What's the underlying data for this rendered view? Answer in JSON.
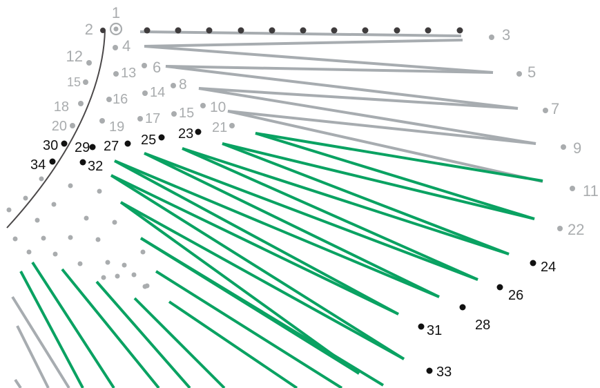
{
  "colors": {
    "background": "#ffffff",
    "gray_line": "#a7acb0",
    "green_line": "#0aa262",
    "gray_dot": "#a9acae",
    "gray_label": "#a9acae",
    "black_dot": "#111111",
    "black_label": "#111111",
    "top_row_dot": "#3f3c3d",
    "curve": "#4a4748"
  },
  "points": [
    {
      "label": "1",
      "tone": "gray",
      "marker": "ring"
    },
    {
      "label": "2",
      "tone": "gray",
      "marker": "dark"
    },
    {
      "label": "3",
      "tone": "gray"
    },
    {
      "label": "4",
      "tone": "gray"
    },
    {
      "label": "5",
      "tone": "gray"
    },
    {
      "label": "6",
      "tone": "gray"
    },
    {
      "label": "7",
      "tone": "gray"
    },
    {
      "label": "8",
      "tone": "gray"
    },
    {
      "label": "9",
      "tone": "gray"
    },
    {
      "label": "10",
      "tone": "gray"
    },
    {
      "label": "11",
      "tone": "gray"
    },
    {
      "label": "12",
      "tone": "gray"
    },
    {
      "label": "13",
      "tone": "gray"
    },
    {
      "label": "14",
      "tone": "gray"
    },
    {
      "label": "15",
      "tone": "gray"
    },
    {
      "label": "15",
      "tone": "gray"
    },
    {
      "label": "16",
      "tone": "gray"
    },
    {
      "label": "17",
      "tone": "gray"
    },
    {
      "label": "18",
      "tone": "gray"
    },
    {
      "label": "19",
      "tone": "gray"
    },
    {
      "label": "20",
      "tone": "gray"
    },
    {
      "label": "21",
      "tone": "gray"
    },
    {
      "label": "22",
      "tone": "gray"
    },
    {
      "label": "23",
      "tone": "black"
    },
    {
      "label": "24",
      "tone": "black"
    },
    {
      "label": "25",
      "tone": "black"
    },
    {
      "label": "26",
      "tone": "black"
    },
    {
      "label": "27",
      "tone": "black"
    },
    {
      "label": "28",
      "tone": "black"
    },
    {
      "label": "29",
      "tone": "black"
    },
    {
      "label": "30",
      "tone": "black"
    },
    {
      "label": "31",
      "tone": "black"
    },
    {
      "label": "32",
      "tone": "black"
    },
    {
      "label": "33",
      "tone": "black"
    },
    {
      "label": "34",
      "tone": "black"
    }
  ]
}
